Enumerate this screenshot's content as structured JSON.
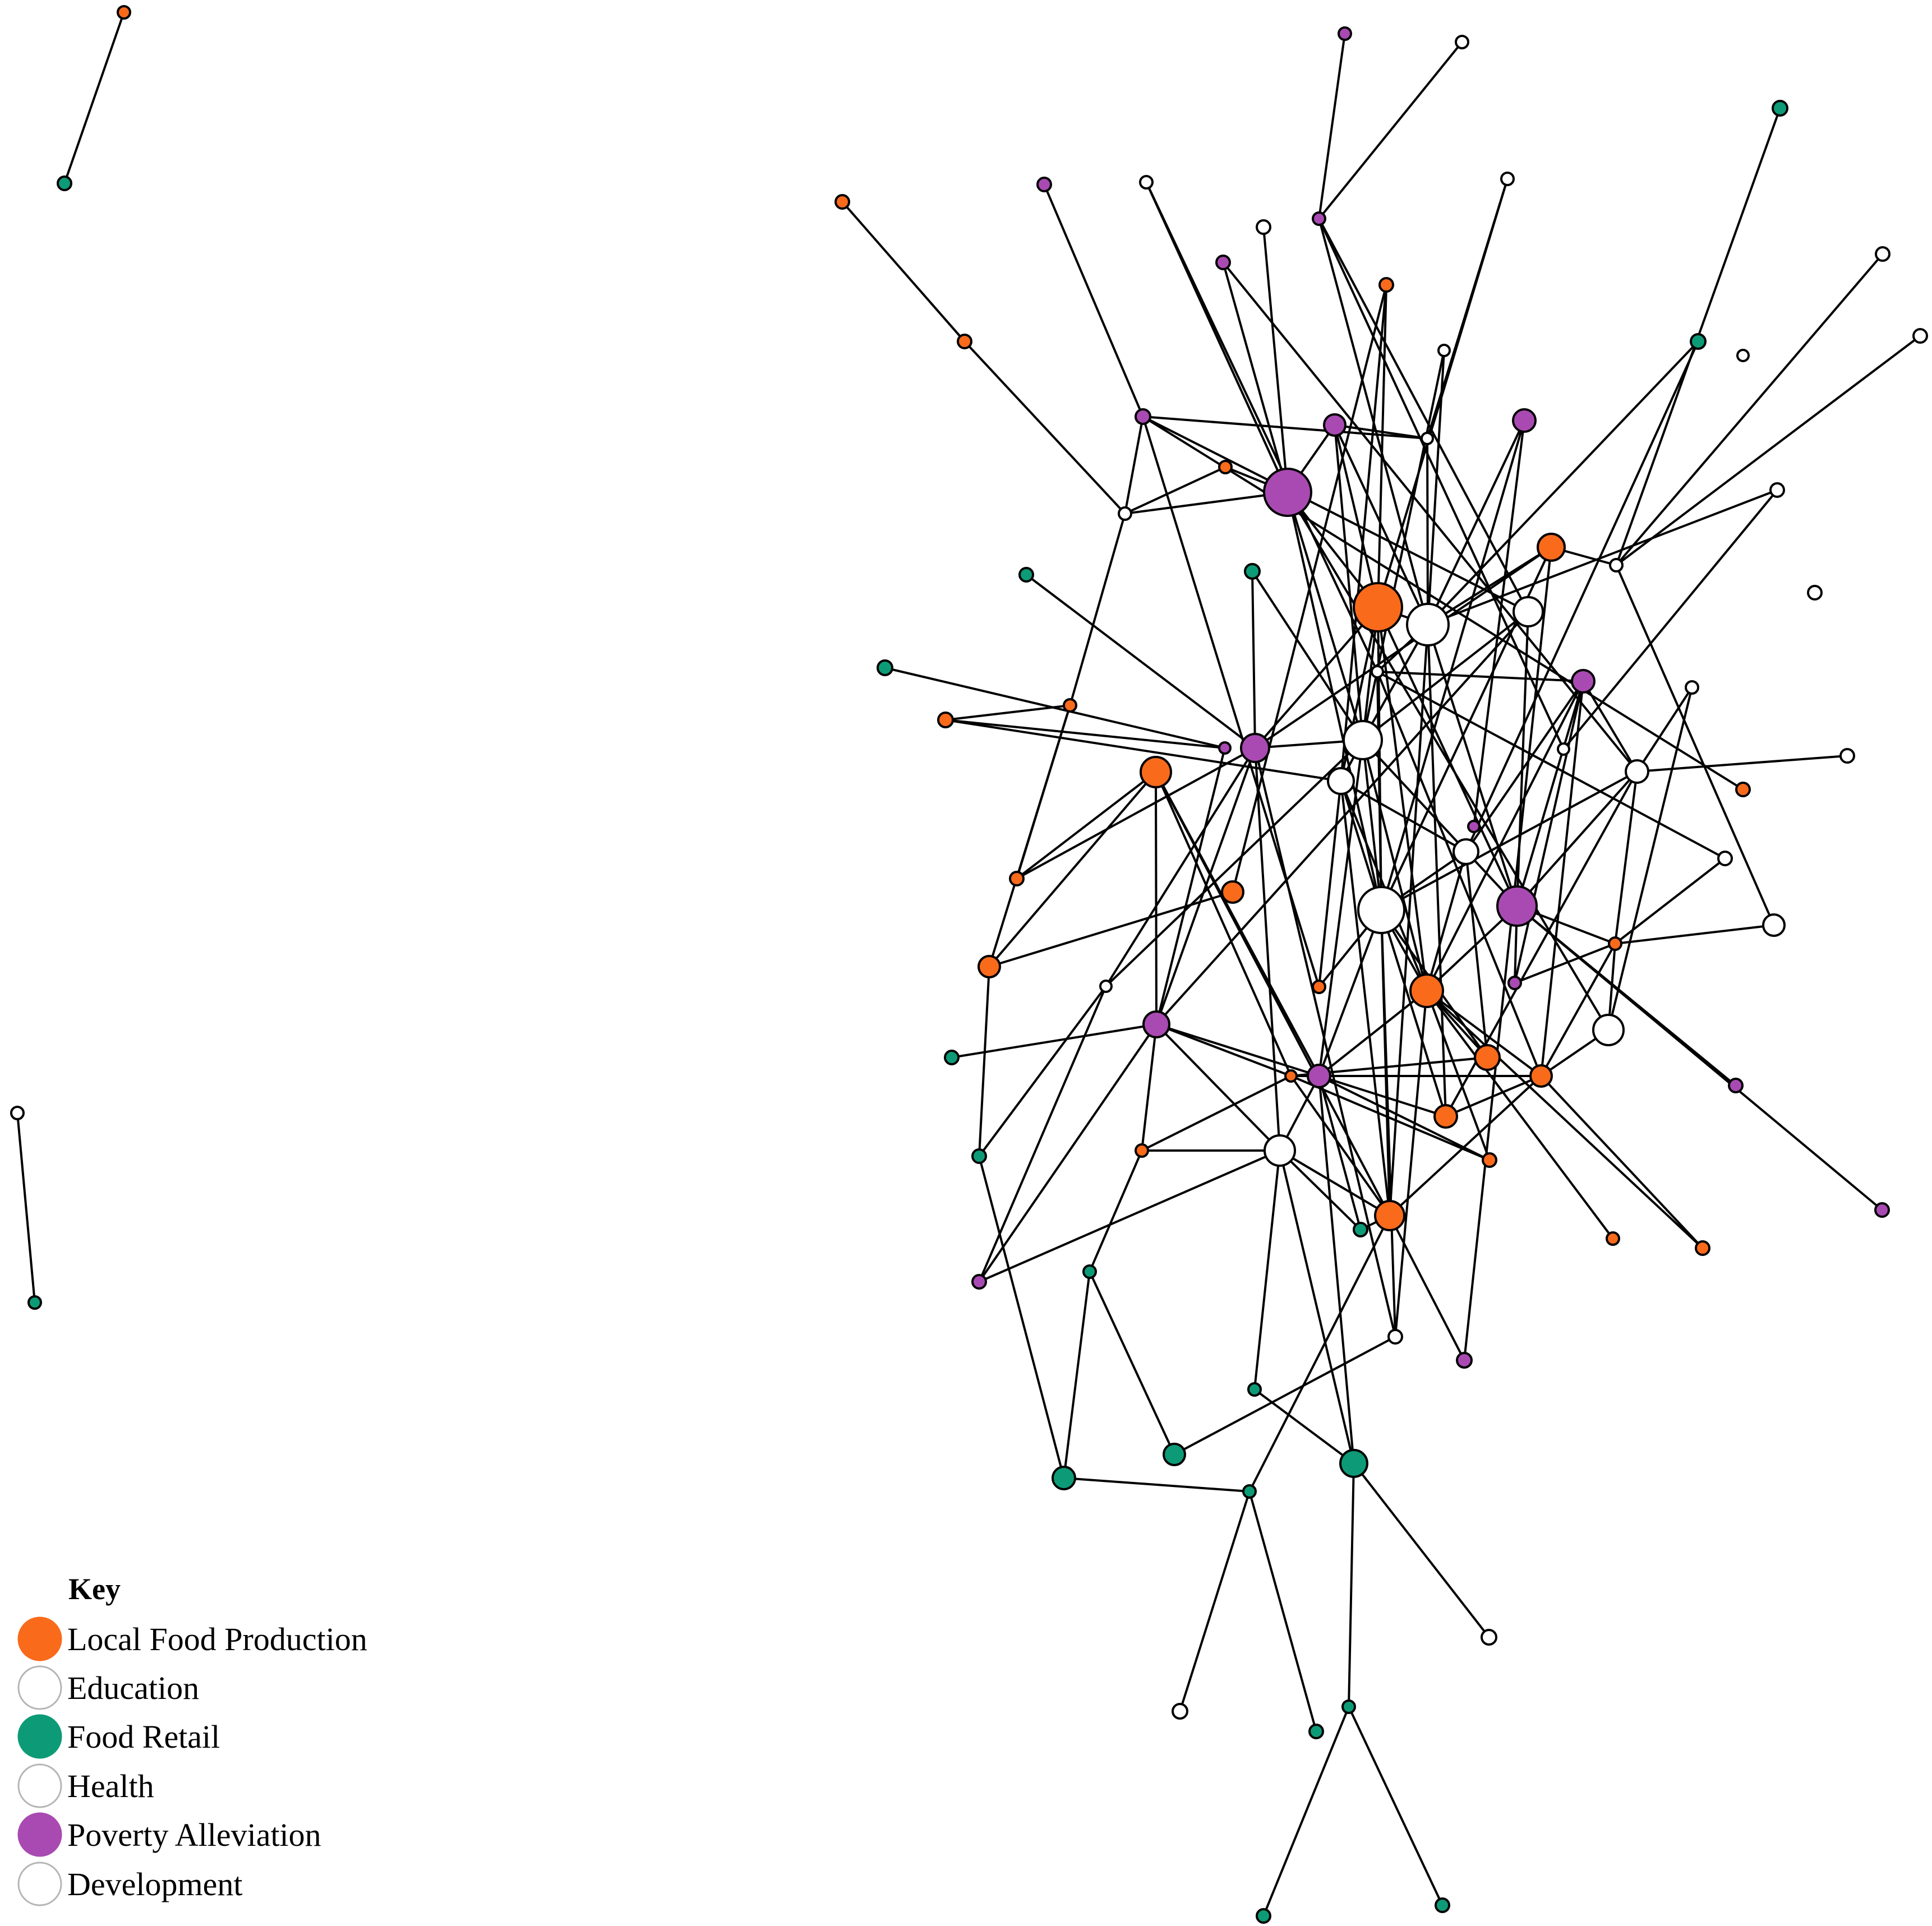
{
  "legend": {
    "title": "Key",
    "items": [
      {
        "label": "Local Food Production",
        "color": "#f96a1b",
        "stroke": "#f96a1b"
      },
      {
        "label": "Education",
        "color": "#ffffff",
        "stroke": "#b5b5b5"
      },
      {
        "label": "Food Retail",
        "color": "#0d9b77",
        "stroke": "#0d9b77"
      },
      {
        "label": "Health",
        "color": "#ffffff",
        "stroke": "#b5b5b5"
      },
      {
        "label": "Poverty Alleviation",
        "color": "#a94ab2",
        "stroke": "#a94ab2"
      },
      {
        "label": "Development",
        "color": "#ffffff",
        "stroke": "#b5b5b5"
      }
    ]
  },
  "colors": {
    "local_food_production": "#f96a1b",
    "food_retail": "#0d9b77",
    "poverty_alleviation": "#a94ab2",
    "white": "#ffffff",
    "edge": "#000000"
  }
}
